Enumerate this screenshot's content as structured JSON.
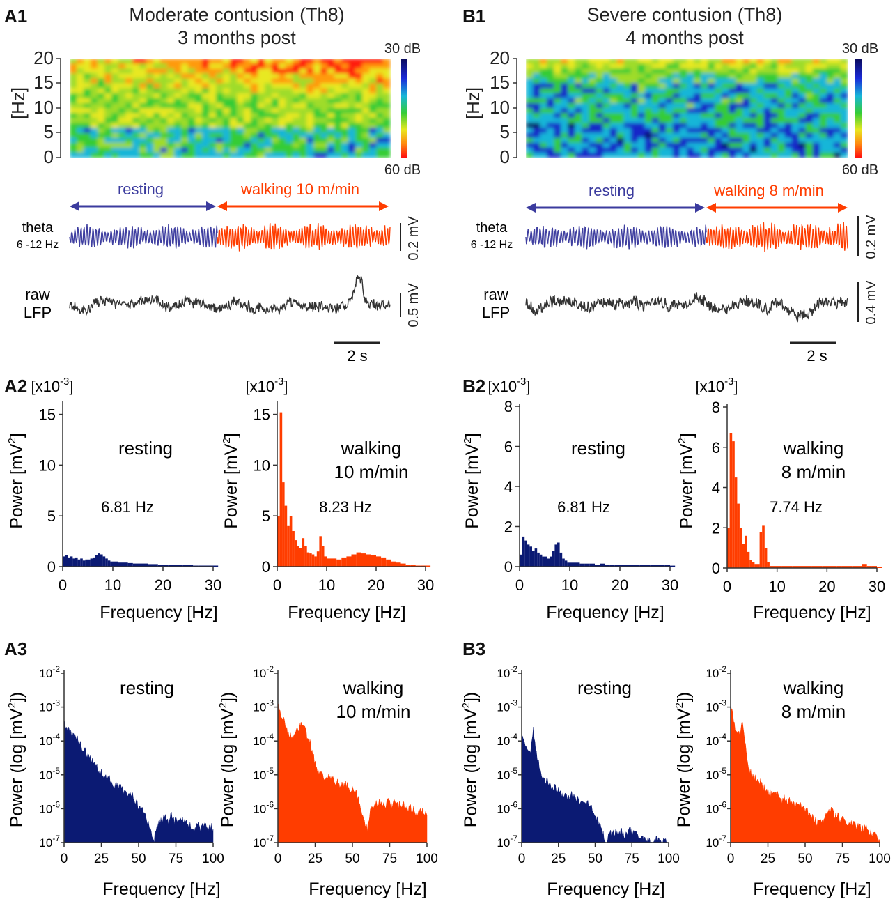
{
  "colors": {
    "resting": "#0b1a73",
    "walking": "#ff3d00",
    "resting_arrow": "#3b3b9e",
    "walking_arrow": "#ff3d00",
    "trace_resting": "#3f3fa0",
    "raw": "#333333"
  },
  "panels": {
    "A1": {
      "label": "A1",
      "title1": "Moderate contusion (Th8)",
      "title2": "3 months post",
      "spec_ylabel": "[Hz]",
      "spec_yticks": [
        "0",
        "5",
        "10",
        "15",
        "20"
      ],
      "cbar_top": "30 dB",
      "cbar_bottom": "60 dB",
      "rest_label": "resting",
      "walk_label": "walking 10 m/min",
      "theta_label1": "theta",
      "theta_label2": "6 -12 Hz",
      "theta_scale": "0.2 mV",
      "raw_label1": "raw",
      "raw_label2": "LFP",
      "raw_scale": "0.5 mV",
      "time_scale": "2 s"
    },
    "B1": {
      "label": "B1",
      "title1": "Severe contusion (Th8)",
      "title2": "4 months post",
      "spec_ylabel": "[Hz]",
      "spec_yticks": [
        "0",
        "5",
        "10",
        "15",
        "20"
      ],
      "cbar_top": "30 dB",
      "cbar_bottom": "60 dB",
      "rest_label": "resting",
      "walk_label": "walking 8 m/min",
      "theta_label1": "theta",
      "theta_label2": "6 -12 Hz",
      "theta_scale": "0.2 mV",
      "raw_label1": "raw",
      "raw_label2": "LFP",
      "raw_scale": "0.4 mV",
      "time_scale": "2 s"
    },
    "A2": {
      "label": "A2"
    },
    "B2": {
      "label": "B2"
    },
    "A3": {
      "label": "A3"
    },
    "B3": {
      "label": "B3"
    }
  },
  "chart_data": [
    {
      "id": "A2-rest",
      "type": "bar",
      "title": "resting",
      "annotation": "6.81 Hz",
      "xlabel": "Frequency [Hz]",
      "ylabel": "Power [mV 2]",
      "scale_label": "[x10-3]",
      "scale_base": "[x10",
      "scale_exp": "-3",
      "scale_end": "]",
      "ylabel_base": "Power [mV",
      "ylabel_sup": "2",
      "ylabel_end": "]",
      "xlim": [
        0,
        30
      ],
      "ylim": [
        0,
        16
      ],
      "xticks": [
        0,
        10,
        20,
        30
      ],
      "yticks": [
        0,
        5,
        10,
        15
      ],
      "color": "#0b1a73",
      "x": [
        0,
        0.5,
        1,
        1.5,
        2,
        2.5,
        3,
        3.5,
        4,
        4.5,
        5,
        5.5,
        6,
        6.5,
        7,
        7.5,
        8,
        8.5,
        9,
        9.5,
        10,
        11,
        12,
        13,
        14,
        15,
        16,
        17,
        18,
        19,
        20,
        21,
        22,
        23,
        24,
        25,
        26,
        27,
        28,
        29,
        30
      ],
      "values": [
        1.0,
        1.1,
        0.9,
        1.0,
        0.8,
        0.9,
        0.7,
        0.8,
        0.6,
        0.7,
        0.7,
        0.8,
        0.9,
        1.1,
        1.3,
        1.2,
        1.0,
        0.8,
        0.6,
        0.5,
        0.5,
        0.4,
        0.4,
        0.35,
        0.3,
        0.3,
        0.3,
        0.25,
        0.25,
        0.2,
        0.2,
        0.2,
        0.2,
        0.15,
        0.15,
        0.15,
        0.1,
        0.1,
        0.1,
        0.1,
        0.1
      ]
    },
    {
      "id": "A2-walk",
      "type": "bar",
      "title": "walking",
      "title2": "10 m/min",
      "annotation": "8.23 Hz",
      "xlabel": "Frequency [Hz]",
      "ylabel": "Power [mV 2]",
      "scale_label": "[x10-3]",
      "scale_base": "[x10",
      "scale_exp": "-3",
      "scale_end": "]",
      "ylabel_base": "Power [mV",
      "ylabel_sup": "2",
      "ylabel_end": "]",
      "xlim": [
        0,
        30
      ],
      "ylim": [
        0,
        16
      ],
      "xticks": [
        0,
        10,
        20,
        30
      ],
      "yticks": [
        0,
        5,
        10,
        15
      ],
      "color": "#ff3d00",
      "x": [
        0,
        0.5,
        1,
        1.5,
        2,
        2.5,
        3,
        3.5,
        4,
        4.5,
        5,
        5.5,
        6,
        6.5,
        7,
        7.5,
        8,
        8.5,
        9,
        9.5,
        10,
        11,
        12,
        13,
        14,
        15,
        16,
        17,
        18,
        19,
        20,
        21,
        22,
        23,
        24,
        25,
        26,
        27,
        28,
        29,
        30
      ],
      "values": [
        5.0,
        15.2,
        8.3,
        6.0,
        4.0,
        5.0,
        3.5,
        2.6,
        2.0,
        1.8,
        2.8,
        2.0,
        1.4,
        1.3,
        1.2,
        1.0,
        1.5,
        3.0,
        2.0,
        1.0,
        0.8,
        0.8,
        0.7,
        0.9,
        1.0,
        1.2,
        1.4,
        1.3,
        1.2,
        1.1,
        1.0,
        0.9,
        0.7,
        0.5,
        0.4,
        0.3,
        0.2,
        0.2,
        0.1,
        0.1,
        0.1
      ]
    },
    {
      "id": "B2-rest",
      "type": "bar",
      "title": "resting",
      "annotation": "6.81 Hz",
      "xlabel": "Frequency [Hz]",
      "ylabel": "Power [mV 2]",
      "scale_label": "[x10-3]",
      "scale_base": "[x10",
      "scale_exp": "-3",
      "scale_end": "]",
      "ylabel_base": "Power [mV",
      "ylabel_sup": "2",
      "ylabel_end": "]",
      "xlim": [
        0,
        30
      ],
      "ylim": [
        0,
        8
      ],
      "xticks": [
        0,
        10,
        20,
        30
      ],
      "yticks": [
        0,
        2,
        4,
        6,
        8
      ],
      "color": "#0b1a73",
      "x": [
        0,
        0.5,
        1,
        1.5,
        2,
        2.5,
        3,
        3.5,
        4,
        4.5,
        5,
        5.5,
        6,
        6.5,
        7,
        7.5,
        8,
        8.5,
        9,
        9.5,
        10,
        11,
        12,
        13,
        14,
        15,
        16,
        17,
        18,
        19,
        20,
        21,
        22,
        23,
        24,
        25,
        26,
        27,
        28,
        29,
        30
      ],
      "values": [
        0.6,
        1.5,
        1.3,
        1.1,
        1.0,
        0.8,
        0.9,
        0.7,
        0.6,
        0.5,
        0.5,
        0.4,
        0.5,
        0.8,
        1.1,
        1.2,
        0.7,
        0.4,
        0.3,
        0.2,
        0.2,
        0.2,
        0.15,
        0.15,
        0.15,
        0.1,
        0.15,
        0.1,
        0.1,
        0.1,
        0.1,
        0.1,
        0.1,
        0.1,
        0.1,
        0.1,
        0.1,
        0.1,
        0.1,
        0.1,
        0.05
      ]
    },
    {
      "id": "B2-walk",
      "type": "bar",
      "title": "walking",
      "title2": "8 m/min",
      "annotation": "7.74 Hz",
      "xlabel": "Frequency [Hz]",
      "ylabel": "Power [mV 2]",
      "scale_label": "[x10-3]",
      "scale_base": "[x10",
      "scale_exp": "-3",
      "scale_end": "]",
      "ylabel_base": "Power [mV",
      "ylabel_sup": "2",
      "ylabel_end": "]",
      "xlim": [
        0,
        30
      ],
      "ylim": [
        0,
        8
      ],
      "xticks": [
        0,
        10,
        20,
        30
      ],
      "yticks": [
        0,
        2,
        4,
        6,
        8
      ],
      "color": "#ff3d00",
      "x": [
        0,
        0.5,
        1,
        1.5,
        2,
        2.5,
        3,
        3.5,
        4,
        4.5,
        5,
        5.5,
        6,
        6.5,
        7,
        7.5,
        8,
        8.5,
        9,
        9.5,
        10,
        11,
        12,
        13,
        14,
        15,
        16,
        17,
        18,
        19,
        20,
        21,
        22,
        23,
        24,
        25,
        26,
        27,
        28,
        29,
        30
      ],
      "values": [
        2.0,
        6.7,
        6.3,
        4.5,
        3.2,
        2.0,
        1.2,
        1.6,
        0.8,
        0.4,
        0.3,
        0.2,
        0.2,
        1.8,
        2.1,
        1.0,
        0.3,
        0.1,
        0.1,
        0.1,
        0.1,
        0.1,
        0.1,
        0.1,
        0.1,
        0.1,
        0.1,
        0.1,
        0.1,
        0.1,
        0.1,
        0.1,
        0.1,
        0.1,
        0.1,
        0.1,
        0.1,
        0.2,
        0.1,
        0.1,
        0.05
      ]
    },
    {
      "id": "A3-rest",
      "type": "area",
      "title": "resting",
      "xlabel": "Frequency [Hz]",
      "ylabel": "Power (log [mV 2])",
      "ylabel_base": "Power (log [mV",
      "ylabel_sup": "2",
      "ylabel_end": "])",
      "xlim": [
        0,
        100
      ],
      "ylim_log10": [
        -7,
        -2
      ],
      "xticks": [
        0,
        25,
        50,
        75,
        100
      ],
      "ytick_exponents": [
        "-2",
        "-3",
        "-4",
        "-5",
        "-6",
        "-7"
      ],
      "color": "#0b1a73",
      "x": [
        0,
        2,
        4,
        6,
        8,
        10,
        12,
        14,
        16,
        18,
        20,
        22,
        24,
        26,
        28,
        30,
        32,
        34,
        36,
        38,
        40,
        42,
        44,
        46,
        48,
        50,
        52,
        54,
        56,
        58,
        60,
        62,
        64,
        66,
        68,
        70,
        72,
        74,
        76,
        78,
        80,
        82,
        84,
        86,
        88,
        90,
        92,
        94,
        96,
        98,
        100
      ],
      "values_log10": [
        -3.5,
        -3.6,
        -3.8,
        -3.8,
        -3.9,
        -4.0,
        -4.2,
        -4.3,
        -4.4,
        -4.5,
        -4.7,
        -4.8,
        -4.9,
        -5.0,
        -5.1,
        -5.1,
        -5.2,
        -5.3,
        -5.3,
        -5.4,
        -5.5,
        -5.5,
        -5.6,
        -5.6,
        -5.8,
        -5.9,
        -6.0,
        -6.2,
        -6.4,
        -6.6,
        -7.0,
        -6.5,
        -6.4,
        -6.3,
        -6.2,
        -6.4,
        -6.2,
        -6.4,
        -6.3,
        -6.3,
        -6.3,
        -6.4,
        -6.5,
        -6.5,
        -6.6,
        -6.5,
        -6.6,
        -6.5,
        -6.6,
        -6.5,
        -6.6
      ]
    },
    {
      "id": "A3-walk",
      "type": "area",
      "title": "walking",
      "title2": "10 m/min",
      "xlabel": "Frequency [Hz]",
      "ylabel": "Power (log [mV 2])",
      "ylabel_base": "Power (log [mV",
      "ylabel_sup": "2",
      "ylabel_end": "])",
      "xlim": [
        0,
        100
      ],
      "ylim_log10": [
        -7,
        -2
      ],
      "xticks": [
        0,
        25,
        50,
        75,
        100
      ],
      "ytick_exponents": [
        "-2",
        "-3",
        "-4",
        "-5",
        "-6",
        "-7"
      ],
      "color": "#ff3d00",
      "x": [
        0,
        2,
        4,
        6,
        8,
        10,
        12,
        14,
        16,
        18,
        20,
        22,
        24,
        26,
        28,
        30,
        32,
        34,
        36,
        38,
        40,
        42,
        44,
        46,
        48,
        50,
        52,
        54,
        56,
        58,
        60,
        62,
        64,
        66,
        68,
        70,
        72,
        74,
        76,
        78,
        80,
        82,
        84,
        86,
        88,
        90,
        92,
        94,
        96,
        98,
        100
      ],
      "values_log10": [
        -2.9,
        -3.2,
        -3.4,
        -3.7,
        -3.8,
        -3.9,
        -3.8,
        -3.6,
        -3.5,
        -3.6,
        -3.9,
        -4.1,
        -4.5,
        -4.9,
        -5.0,
        -5.0,
        -5.1,
        -5.1,
        -5.1,
        -5.2,
        -5.2,
        -5.3,
        -5.3,
        -5.3,
        -5.4,
        -5.4,
        -5.5,
        -5.7,
        -6.0,
        -6.3,
        -6.6,
        -6.0,
        -5.9,
        -5.8,
        -5.8,
        -5.8,
        -5.9,
        -5.8,
        -5.9,
        -5.8,
        -5.9,
        -5.9,
        -5.9,
        -6.0,
        -6.0,
        -6.0,
        -6.1,
        -6.1,
        -6.1,
        -6.1,
        -6.2
      ]
    },
    {
      "id": "B3-rest",
      "type": "area",
      "title": "resting",
      "xlabel": "Frequency [Hz]",
      "ylabel": "Power (log [mV 2])",
      "ylabel_base": "Power (log [mV",
      "ylabel_sup": "2",
      "ylabel_end": "])",
      "xlim": [
        0,
        100
      ],
      "ylim_log10": [
        -7,
        -2
      ],
      "xticks": [
        0,
        25,
        50,
        75,
        100
      ],
      "ytick_exponents": [
        "-2",
        "-3",
        "-4",
        "-5",
        "-6",
        "-7"
      ],
      "color": "#0b1a73",
      "x": [
        0,
        2,
        4,
        6,
        8,
        10,
        12,
        14,
        16,
        18,
        20,
        22,
        24,
        26,
        28,
        30,
        32,
        34,
        36,
        38,
        40,
        42,
        44,
        46,
        48,
        50,
        52,
        54,
        56,
        58,
        60,
        62,
        64,
        66,
        68,
        70,
        72,
        74,
        76,
        78,
        80,
        82,
        84,
        86,
        88,
        90,
        92,
        94,
        96,
        98,
        100
      ],
      "values_log10": [
        -3.8,
        -4.1,
        -4.3,
        -4.3,
        -3.7,
        -4.3,
        -4.8,
        -5.0,
        -5.2,
        -5.2,
        -5.3,
        -5.4,
        -5.4,
        -5.5,
        -5.6,
        -5.6,
        -5.6,
        -5.6,
        -5.6,
        -5.7,
        -5.8,
        -5.8,
        -5.8,
        -5.9,
        -6.0,
        -6.2,
        -6.3,
        -6.6,
        -6.8,
        -7.0,
        -6.7,
        -6.8,
        -6.6,
        -6.7,
        -6.7,
        -6.8,
        -6.8,
        -6.6,
        -6.7,
        -6.8,
        -6.9,
        -6.8,
        -6.9,
        -6.9,
        -6.9,
        -7.0,
        -6.9,
        -6.9,
        -7.0,
        -7.0,
        -7.0
      ]
    },
    {
      "id": "B3-walk",
      "type": "area",
      "title": "walking",
      "title2": "8 m/min",
      "xlabel": "Frequency [Hz]",
      "ylabel": "Power (log [mV 2])",
      "ylabel_base": "Power (log [mV",
      "ylabel_sup": "2",
      "ylabel_end": "])",
      "xlim": [
        0,
        100
      ],
      "ylim_log10": [
        -7,
        -2
      ],
      "xticks": [
        0,
        25,
        50,
        75,
        100
      ],
      "ytick_exponents": [
        "-2",
        "-3",
        "-4",
        "-5",
        "-6",
        "-7"
      ],
      "color": "#ff3d00",
      "x": [
        0,
        2,
        4,
        6,
        8,
        10,
        12,
        14,
        16,
        18,
        20,
        22,
        24,
        26,
        28,
        30,
        32,
        34,
        36,
        38,
        40,
        42,
        44,
        46,
        48,
        50,
        52,
        54,
        56,
        58,
        60,
        62,
        64,
        66,
        68,
        70,
        72,
        74,
        76,
        78,
        80,
        82,
        84,
        86,
        88,
        90,
        92,
        94,
        96,
        98,
        100
      ],
      "values_log10": [
        -2.9,
        -3.4,
        -3.7,
        -3.8,
        -3.5,
        -4.2,
        -4.7,
        -5.0,
        -5.1,
        -5.2,
        -5.2,
        -5.4,
        -5.4,
        -5.5,
        -5.6,
        -5.6,
        -5.6,
        -5.8,
        -5.6,
        -5.8,
        -5.7,
        -5.8,
        -5.9,
        -5.9,
        -5.9,
        -6.0,
        -6.1,
        -6.2,
        -6.3,
        -6.4,
        -6.4,
        -6.4,
        -6.2,
        -6.1,
        -6.0,
        -6.2,
        -6.2,
        -6.3,
        -6.3,
        -6.4,
        -6.4,
        -6.4,
        -6.5,
        -6.5,
        -6.6,
        -6.5,
        -6.6,
        -6.7,
        -6.7,
        -6.8,
        -6.9
      ]
    }
  ]
}
